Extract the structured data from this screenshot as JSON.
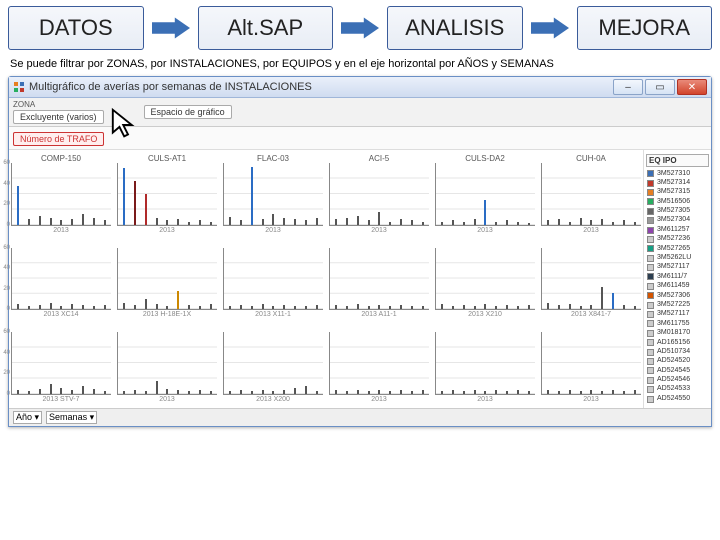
{
  "flow": {
    "steps": [
      "DATOS",
      "Alt.SAP",
      "ANALISIS",
      "MEJORA"
    ],
    "arrow_fill": "#3b6fb5",
    "step_border": "#3a5b9a",
    "step_bg_top": "#f5f7fb",
    "step_bg_bot": "#e8edf5"
  },
  "caption": "Se puede filtrar por ZONAS, por INSTALACIONES,  por EQUIPOS y en el eje horizontal por AÑOS y SEMANAS",
  "window": {
    "title": "Multigráfico de averías por semanas de INSTALACIONES",
    "buttons": {
      "min": "–",
      "max": "▭",
      "close": "✕"
    }
  },
  "toolbar": {
    "zona_label": "ZONA",
    "filter_state": "Excluyente (varios)",
    "placeholder": "Espacio de gráfico",
    "red_pill": "Número de TRAFO"
  },
  "charts": {
    "yticks": [
      0,
      20,
      40,
      60
    ],
    "ymax": 60,
    "grid_color": "#e0e0e0",
    "axis_color": "#888",
    "title_fontsize": 8,
    "panels": [
      {
        "title": "COMP-150",
        "foot": "2013",
        "bars": [
          {
            "h": 38,
            "c": "#2a6cc4"
          },
          {
            "h": 5,
            "c": "#555"
          },
          {
            "h": 8,
            "c": "#555"
          },
          {
            "h": 6,
            "c": "#555"
          },
          {
            "h": 4,
            "c": "#555"
          },
          {
            "h": 5,
            "c": "#555"
          },
          {
            "h": 10,
            "c": "#555"
          },
          {
            "h": 6,
            "c": "#555"
          },
          {
            "h": 4,
            "c": "#555"
          }
        ]
      },
      {
        "title": "CULS-AT1",
        "foot": "2013",
        "bars": [
          {
            "h": 55,
            "c": "#2a6cc4"
          },
          {
            "h": 42,
            "c": "#7a1a1a"
          },
          {
            "h": 30,
            "c": "#b02a2a"
          },
          {
            "h": 6,
            "c": "#555"
          },
          {
            "h": 4,
            "c": "#555"
          },
          {
            "h": 5,
            "c": "#555"
          },
          {
            "h": 3,
            "c": "#555"
          },
          {
            "h": 4,
            "c": "#555"
          },
          {
            "h": 3,
            "c": "#555"
          }
        ]
      },
      {
        "title": "FLAC-03",
        "foot": "2013",
        "bars": [
          {
            "h": 7,
            "c": "#555"
          },
          {
            "h": 4,
            "c": "#555"
          },
          {
            "h": 56,
            "c": "#2a6cc4"
          },
          {
            "h": 5,
            "c": "#555"
          },
          {
            "h": 10,
            "c": "#555"
          },
          {
            "h": 6,
            "c": "#555"
          },
          {
            "h": 5,
            "c": "#555"
          },
          {
            "h": 4,
            "c": "#555"
          },
          {
            "h": 6,
            "c": "#555"
          }
        ]
      },
      {
        "title": "ACI-5",
        "foot": "2013",
        "bars": [
          {
            "h": 5,
            "c": "#555"
          },
          {
            "h": 6,
            "c": "#555"
          },
          {
            "h": 8,
            "c": "#555"
          },
          {
            "h": 4,
            "c": "#555"
          },
          {
            "h": 12,
            "c": "#555"
          },
          {
            "h": 3,
            "c": "#555"
          },
          {
            "h": 5,
            "c": "#555"
          },
          {
            "h": 4,
            "c": "#555"
          },
          {
            "h": 3,
            "c": "#555"
          }
        ]
      },
      {
        "title": "CULS-DA2",
        "foot": "2013",
        "bars": [
          {
            "h": 3,
            "c": "#555"
          },
          {
            "h": 4,
            "c": "#555"
          },
          {
            "h": 3,
            "c": "#555"
          },
          {
            "h": 5,
            "c": "#555"
          },
          {
            "h": 24,
            "c": "#2a6cc4"
          },
          {
            "h": 3,
            "c": "#555"
          },
          {
            "h": 4,
            "c": "#555"
          },
          {
            "h": 3,
            "c": "#555"
          },
          {
            "h": 2,
            "c": "#555"
          }
        ]
      },
      {
        "title": "CUH-0A",
        "foot": "2013",
        "bars": [
          {
            "h": 4,
            "c": "#555"
          },
          {
            "h": 5,
            "c": "#555"
          },
          {
            "h": 3,
            "c": "#555"
          },
          {
            "h": 6,
            "c": "#555"
          },
          {
            "h": 4,
            "c": "#555"
          },
          {
            "h": 5,
            "c": "#555"
          },
          {
            "h": 3,
            "c": "#555"
          },
          {
            "h": 4,
            "c": "#555"
          },
          {
            "h": 3,
            "c": "#555"
          }
        ]
      },
      {
        "title": "",
        "foot": "2013  XC14",
        "bars": [
          {
            "h": 5,
            "c": "#555"
          },
          {
            "h": 3,
            "c": "#555"
          },
          {
            "h": 4,
            "c": "#555"
          },
          {
            "h": 6,
            "c": "#555"
          },
          {
            "h": 3,
            "c": "#555"
          },
          {
            "h": 5,
            "c": "#555"
          },
          {
            "h": 4,
            "c": "#555"
          },
          {
            "h": 3,
            "c": "#555"
          },
          {
            "h": 4,
            "c": "#555"
          }
        ]
      },
      {
        "title": "",
        "foot": "2013  H-18E-1X",
        "bars": [
          {
            "h": 6,
            "c": "#555"
          },
          {
            "h": 4,
            "c": "#555"
          },
          {
            "h": 10,
            "c": "#555"
          },
          {
            "h": 5,
            "c": "#555"
          },
          {
            "h": 3,
            "c": "#555"
          },
          {
            "h": 18,
            "c": "#cc8800"
          },
          {
            "h": 4,
            "c": "#555"
          },
          {
            "h": 3,
            "c": "#555"
          },
          {
            "h": 5,
            "c": "#555"
          }
        ]
      },
      {
        "title": "",
        "foot": "2013  X11-1",
        "bars": [
          {
            "h": 3,
            "c": "#555"
          },
          {
            "h": 4,
            "c": "#555"
          },
          {
            "h": 3,
            "c": "#555"
          },
          {
            "h": 5,
            "c": "#555"
          },
          {
            "h": 3,
            "c": "#555"
          },
          {
            "h": 4,
            "c": "#555"
          },
          {
            "h": 3,
            "c": "#555"
          },
          {
            "h": 3,
            "c": "#555"
          },
          {
            "h": 4,
            "c": "#555"
          }
        ]
      },
      {
        "title": "",
        "foot": "2013  A11-1",
        "bars": [
          {
            "h": 4,
            "c": "#555"
          },
          {
            "h": 3,
            "c": "#555"
          },
          {
            "h": 5,
            "c": "#555"
          },
          {
            "h": 3,
            "c": "#555"
          },
          {
            "h": 4,
            "c": "#555"
          },
          {
            "h": 3,
            "c": "#555"
          },
          {
            "h": 4,
            "c": "#555"
          },
          {
            "h": 3,
            "c": "#555"
          },
          {
            "h": 3,
            "c": "#555"
          }
        ]
      },
      {
        "title": "",
        "foot": "2013  X210",
        "bars": [
          {
            "h": 5,
            "c": "#555"
          },
          {
            "h": 3,
            "c": "#555"
          },
          {
            "h": 4,
            "c": "#555"
          },
          {
            "h": 3,
            "c": "#555"
          },
          {
            "h": 5,
            "c": "#555"
          },
          {
            "h": 3,
            "c": "#555"
          },
          {
            "h": 4,
            "c": "#555"
          },
          {
            "h": 3,
            "c": "#555"
          },
          {
            "h": 4,
            "c": "#555"
          }
        ]
      },
      {
        "title": "",
        "foot": "2013  X841-7",
        "bars": [
          {
            "h": 6,
            "c": "#555"
          },
          {
            "h": 4,
            "c": "#555"
          },
          {
            "h": 5,
            "c": "#555"
          },
          {
            "h": 3,
            "c": "#555"
          },
          {
            "h": 4,
            "c": "#555"
          },
          {
            "h": 22,
            "c": "#555"
          },
          {
            "h": 16,
            "c": "#2a6cc4"
          },
          {
            "h": 4,
            "c": "#555"
          },
          {
            "h": 3,
            "c": "#555"
          }
        ]
      },
      {
        "title": "",
        "foot": "2013  STV-7",
        "bars": [
          {
            "h": 4,
            "c": "#555"
          },
          {
            "h": 3,
            "c": "#555"
          },
          {
            "h": 5,
            "c": "#555"
          },
          {
            "h": 10,
            "c": "#555"
          },
          {
            "h": 6,
            "c": "#555"
          },
          {
            "h": 4,
            "c": "#555"
          },
          {
            "h": 8,
            "c": "#555"
          },
          {
            "h": 5,
            "c": "#555"
          },
          {
            "h": 3,
            "c": "#555"
          }
        ]
      },
      {
        "title": "",
        "foot": "2013",
        "bars": [
          {
            "h": 3,
            "c": "#555"
          },
          {
            "h": 4,
            "c": "#555"
          },
          {
            "h": 3,
            "c": "#555"
          },
          {
            "h": 12,
            "c": "#555"
          },
          {
            "h": 5,
            "c": "#555"
          },
          {
            "h": 4,
            "c": "#555"
          },
          {
            "h": 3,
            "c": "#555"
          },
          {
            "h": 4,
            "c": "#555"
          },
          {
            "h": 3,
            "c": "#555"
          }
        ]
      },
      {
        "title": "",
        "foot": "2013  X200",
        "bars": [
          {
            "h": 3,
            "c": "#555"
          },
          {
            "h": 4,
            "c": "#555"
          },
          {
            "h": 3,
            "c": "#555"
          },
          {
            "h": 4,
            "c": "#555"
          },
          {
            "h": 3,
            "c": "#555"
          },
          {
            "h": 4,
            "c": "#555"
          },
          {
            "h": 6,
            "c": "#555"
          },
          {
            "h": 8,
            "c": "#555"
          },
          {
            "h": 3,
            "c": "#555"
          }
        ]
      },
      {
        "title": "",
        "foot": "2013",
        "bars": [
          {
            "h": 4,
            "c": "#555"
          },
          {
            "h": 3,
            "c": "#555"
          },
          {
            "h": 4,
            "c": "#555"
          },
          {
            "h": 3,
            "c": "#555"
          },
          {
            "h": 4,
            "c": "#555"
          },
          {
            "h": 3,
            "c": "#555"
          },
          {
            "h": 4,
            "c": "#555"
          },
          {
            "h": 3,
            "c": "#555"
          },
          {
            "h": 4,
            "c": "#555"
          }
        ]
      },
      {
        "title": "",
        "foot": "2013",
        "bars": [
          {
            "h": 3,
            "c": "#555"
          },
          {
            "h": 4,
            "c": "#555"
          },
          {
            "h": 3,
            "c": "#555"
          },
          {
            "h": 4,
            "c": "#555"
          },
          {
            "h": 3,
            "c": "#555"
          },
          {
            "h": 4,
            "c": "#555"
          },
          {
            "h": 3,
            "c": "#555"
          },
          {
            "h": 4,
            "c": "#555"
          },
          {
            "h": 3,
            "c": "#555"
          }
        ]
      },
      {
        "title": "",
        "foot": "2013",
        "bars": [
          {
            "h": 4,
            "c": "#555"
          },
          {
            "h": 3,
            "c": "#555"
          },
          {
            "h": 4,
            "c": "#555"
          },
          {
            "h": 3,
            "c": "#555"
          },
          {
            "h": 4,
            "c": "#555"
          },
          {
            "h": 3,
            "c": "#555"
          },
          {
            "h": 4,
            "c": "#555"
          },
          {
            "h": 3,
            "c": "#555"
          },
          {
            "h": 4,
            "c": "#555"
          }
        ]
      }
    ]
  },
  "legend": {
    "header": "EQ IPO",
    "items": [
      {
        "label": "3M527310",
        "c": "#3b6fb5"
      },
      {
        "label": "3M527314",
        "c": "#c0392b"
      },
      {
        "label": "3M527315",
        "c": "#e67e22"
      },
      {
        "label": "3M516506",
        "c": "#27ae60"
      },
      {
        "label": "3M527305",
        "c": "#666666"
      },
      {
        "label": "3M527304",
        "c": "#999999"
      },
      {
        "label": "3M611257",
        "c": "#8e44ad"
      },
      {
        "label": "3M527236",
        "c": "#cccccc"
      },
      {
        "label": "3M527265",
        "c": "#16a085"
      },
      {
        "label": "3M5262LU",
        "c": "#cccccc"
      },
      {
        "label": "3M527117",
        "c": "#cccccc"
      },
      {
        "label": "3M6111/7",
        "c": "#2c3e50"
      },
      {
        "label": "3M611459",
        "c": "#cccccc"
      },
      {
        "label": "3M527306",
        "c": "#d35400"
      },
      {
        "label": "3M527225",
        "c": "#cccccc"
      },
      {
        "label": "3M527117",
        "c": "#cccccc"
      },
      {
        "label": "3M611755",
        "c": "#cccccc"
      },
      {
        "label": "3M018170",
        "c": "#cccccc"
      },
      {
        "label": "AD165156",
        "c": "#cccccc"
      },
      {
        "label": "AD510734",
        "c": "#cccccc"
      },
      {
        "label": "AD524520",
        "c": "#cccccc"
      },
      {
        "label": "AD524545",
        "c": "#cccccc"
      },
      {
        "label": "AD524546",
        "c": "#cccccc"
      },
      {
        "label": "AD524533",
        "c": "#cccccc"
      },
      {
        "label": "AD524550",
        "c": "#cccccc"
      }
    ]
  },
  "footer": {
    "sel1": "Año ▾",
    "sel2": "Semanas ▾"
  }
}
